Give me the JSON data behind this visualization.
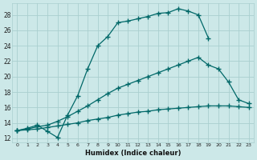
{
  "xlabel": "Humidex (Indice chaleur)",
  "bg_color": "#cce8e8",
  "grid_color": "#aacfcf",
  "line_color": "#006868",
  "xlim": [
    -0.5,
    23.5
  ],
  "ylim": [
    11.5,
    29.5
  ],
  "yticks": [
    12,
    14,
    16,
    18,
    20,
    22,
    24,
    26,
    28
  ],
  "xticks": [
    0,
    1,
    2,
    3,
    4,
    5,
    6,
    7,
    8,
    9,
    10,
    11,
    12,
    13,
    14,
    15,
    16,
    17,
    18,
    19,
    20,
    21,
    22,
    23
  ],
  "line1_x": [
    0,
    1,
    2,
    3,
    4,
    5,
    6,
    7,
    8,
    9,
    10,
    11,
    12,
    13,
    14,
    15,
    16,
    17,
    18,
    19
  ],
  "line1_y": [
    13.0,
    13.3,
    13.7,
    12.9,
    12.1,
    15.0,
    17.5,
    21.0,
    24.0,
    25.2,
    27.0,
    27.2,
    27.5,
    27.8,
    28.2,
    28.3,
    28.8,
    28.5,
    28.0,
    25.0
  ],
  "line2_x": [
    0,
    1,
    2,
    3,
    4,
    5,
    6,
    7,
    8,
    9,
    10,
    11,
    12,
    13,
    14,
    15,
    16,
    17,
    18,
    19,
    20,
    21,
    22,
    23
  ],
  "line2_y": [
    13.0,
    13.2,
    13.5,
    13.7,
    14.2,
    14.8,
    15.5,
    16.2,
    17.0,
    17.8,
    18.5,
    19.0,
    19.5,
    20.0,
    20.5,
    21.0,
    21.5,
    22.0,
    22.5,
    21.5,
    21.0,
    19.3,
    17.0,
    16.5
  ],
  "line3_x": [
    0,
    1,
    2,
    3,
    4,
    5,
    6,
    7,
    8,
    9,
    10,
    11,
    12,
    13,
    14,
    15,
    16,
    17,
    18,
    19,
    20,
    21,
    22,
    23
  ],
  "line3_y": [
    13.0,
    13.1,
    13.2,
    13.4,
    13.6,
    13.8,
    14.0,
    14.3,
    14.5,
    14.7,
    15.0,
    15.2,
    15.4,
    15.5,
    15.7,
    15.8,
    15.9,
    16.0,
    16.1,
    16.2,
    16.2,
    16.2,
    16.1,
    16.0
  ]
}
